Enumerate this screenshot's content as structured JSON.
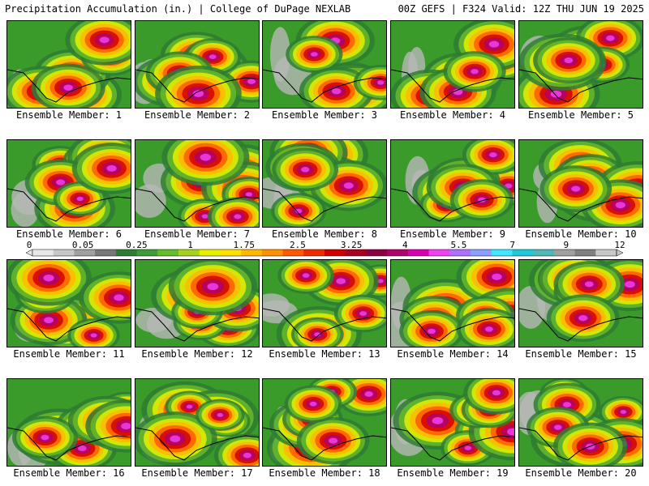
{
  "header": {
    "left": "Precipitation Accumulation (in.) | College of DuPage NEXLAB",
    "right": "00Z GEFS | F324 Valid: 12Z THU JUN 19 2025"
  },
  "members": [
    {
      "label": "Ensemble Member: 1"
    },
    {
      "label": "Ensemble Member: 2"
    },
    {
      "label": "Ensemble Member: 3"
    },
    {
      "label": "Ensemble Member: 4"
    },
    {
      "label": "Ensemble Member: 5"
    },
    {
      "label": "Ensemble Member: 6"
    },
    {
      "label": "Ensemble Member: 7"
    },
    {
      "label": "Ensemble Member: 8"
    },
    {
      "label": "Ensemble Member: 9"
    },
    {
      "label": "Ensemble Member: 10"
    },
    {
      "label": "Ensemble Member: 11"
    },
    {
      "label": "Ensemble Member: 12"
    },
    {
      "label": "Ensemble Member: 13"
    },
    {
      "label": "Ensemble Member: 14"
    },
    {
      "label": "Ensemble Member: 15"
    },
    {
      "label": "Ensemble Member: 16"
    },
    {
      "label": "Ensemble Member: 17"
    },
    {
      "label": "Ensemble Member: 18"
    },
    {
      "label": "Ensemble Member: 19"
    },
    {
      "label": "Ensemble Member: 20"
    }
  ],
  "colorbar": {
    "labels": [
      "0",
      "0.05",
      "0.25",
      "1",
      "1.75",
      "2.5",
      "3.25",
      "4",
      "5.5",
      "7",
      "9",
      "12"
    ],
    "colors": [
      "#e8e8e8",
      "#c8c8c8",
      "#a0a0a0",
      "#787878",
      "#2e7d32",
      "#3e9b36",
      "#66bb2a",
      "#a4d21e",
      "#e6f000",
      "#ffe000",
      "#ffb800",
      "#ff9000",
      "#ff5a00",
      "#ee2a00",
      "#d00000",
      "#a8001e",
      "#8a0040",
      "#b0006e",
      "#d800b0",
      "#f040f0",
      "#b070ff",
      "#8aa0ff",
      "#40e8ff",
      "#20c8d8",
      "#50b8b8",
      "#a0a0a0",
      "#808080",
      "#c8c8c8"
    ]
  }
}
